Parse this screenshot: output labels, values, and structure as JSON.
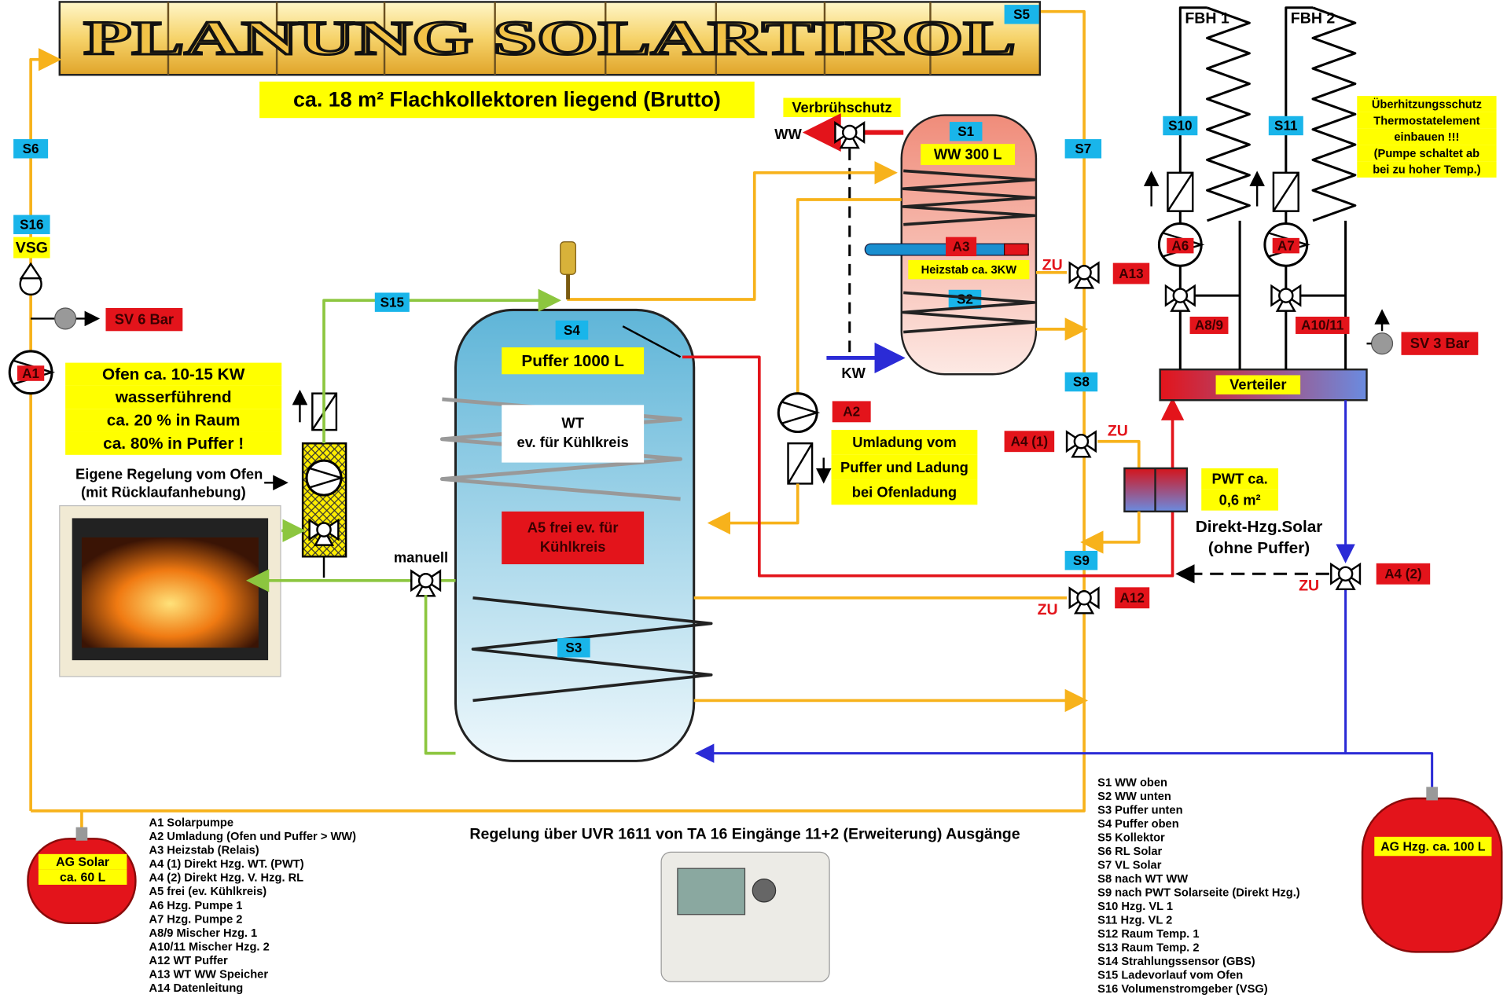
{
  "header": {
    "title": "PLANUNG SOLARTIROL",
    "subtitle": "ca. 18 m² Flachkollektoren liegend (Brutto)"
  },
  "tags": {
    "s1": "S1",
    "s2": "S2",
    "s3": "S3",
    "s4": "S4",
    "s5": "S5",
    "s6": "S6",
    "s7": "S7",
    "s8": "S8",
    "s9": "S9",
    "s10": "S10",
    "s11": "S11",
    "s15": "S15",
    "s16": "S16",
    "vsg": "VSG"
  },
  "outputs": {
    "a1": "A1",
    "a2": "A2",
    "a3": "A3",
    "a4_1": "A4 (1)",
    "a4_2": "A4 (2)",
    "a6": "A6",
    "a7": "A7",
    "a8_9": "A8/9",
    "a10_11": "A10/11",
    "a12": "A12",
    "a13": "A13"
  },
  "zu": [
    "ZU",
    "ZU",
    "ZU",
    "ZU"
  ],
  "safety": {
    "sv6": "SV 6 Bar",
    "sv3": "SV 3 Bar"
  },
  "labels": {
    "verbruehschutz": "Verbrühschutz",
    "ww": "WW",
    "kw": "KW",
    "fbh1": "FBH 1",
    "fbh2": "FBH 2",
    "manuell": "manuell",
    "verteiler": "Verteiler"
  },
  "tanks": {
    "ww": "WW 300 L",
    "heizstab": "Heizstab ca. 3KW",
    "puffer": "Puffer 1000 L",
    "wt": [
      "WT",
      "ev. für Kühlkreis"
    ],
    "a5": [
      "A5 frei ev. für",
      "Kühlkreis"
    ]
  },
  "notes": {
    "ofen": [
      "Ofen ca. 10-15 KW",
      "wasserführend",
      "ca. 20 % in Raum",
      "ca. 80% in Puffer !"
    ],
    "regelung_ofen": [
      "Eigene Regelung vom Ofen",
      "(mit Rücklaufanhebung)"
    ],
    "umladung": [
      "Umladung vom",
      "Puffer und Ladung",
      "bei Ofenladung"
    ],
    "pwt": [
      "PWT ca.",
      "0,6 m²"
    ],
    "direkt": [
      "Direkt-Hzg.Solar",
      "(ohne Puffer)"
    ],
    "ueberhitzung": [
      "Überhitzungsschutz",
      "Thermostatelement",
      "einbauen !!!",
      "(Pumpe schaltet ab",
      "bei zu hoher Temp.)"
    ],
    "controller": "Regelung über UVR 1611 von TA  16 Eingänge 11+2 (Erweiterung) Ausgänge"
  },
  "vessels": {
    "solar": [
      "AG Solar",
      "ca. 60 L"
    ],
    "hzg": "AG Hzg. ca. 100 L"
  },
  "legend_outputs": [
    "A1 Solarpumpe",
    "A2 Umladung (Ofen und Puffer > WW)",
    "A3 Heizstab (Relais)",
    "A4 (1) Direkt Hzg. WT. (PWT)",
    "A4 (2) Direkt Hzg. V. Hzg. RL",
    "A5 frei (ev. Kühlkreis)",
    "A6 Hzg. Pumpe 1",
    "A7 Hzg. Pumpe 2",
    "A8/9      Mischer Hzg. 1",
    "A10/11 Mischer Hzg. 2",
    "A12 WT Puffer",
    "A13 WT WW Speicher",
    "A14 Datenleitung"
  ],
  "legend_sensors": [
    "S1 WW oben",
    "S2 WW unten",
    "S3 Puffer unten",
    "S4 Puffer oben",
    "S5 Kollektor",
    "S6 RL Solar",
    "S7 VL Solar",
    "S8 nach WT WW",
    "S9 nach PWT Solarseite (Direkt Hzg.)",
    "S10 Hzg. VL 1",
    "S11 Hzg. VL 2",
    "S12 Raum Temp. 1",
    "S13 Raum Temp. 2",
    "S14 Strahlungssensor (GBS)",
    "S15 Ladevorlauf vom Ofen",
    "S16 Volumenstromgeber (VSG)"
  ]
}
